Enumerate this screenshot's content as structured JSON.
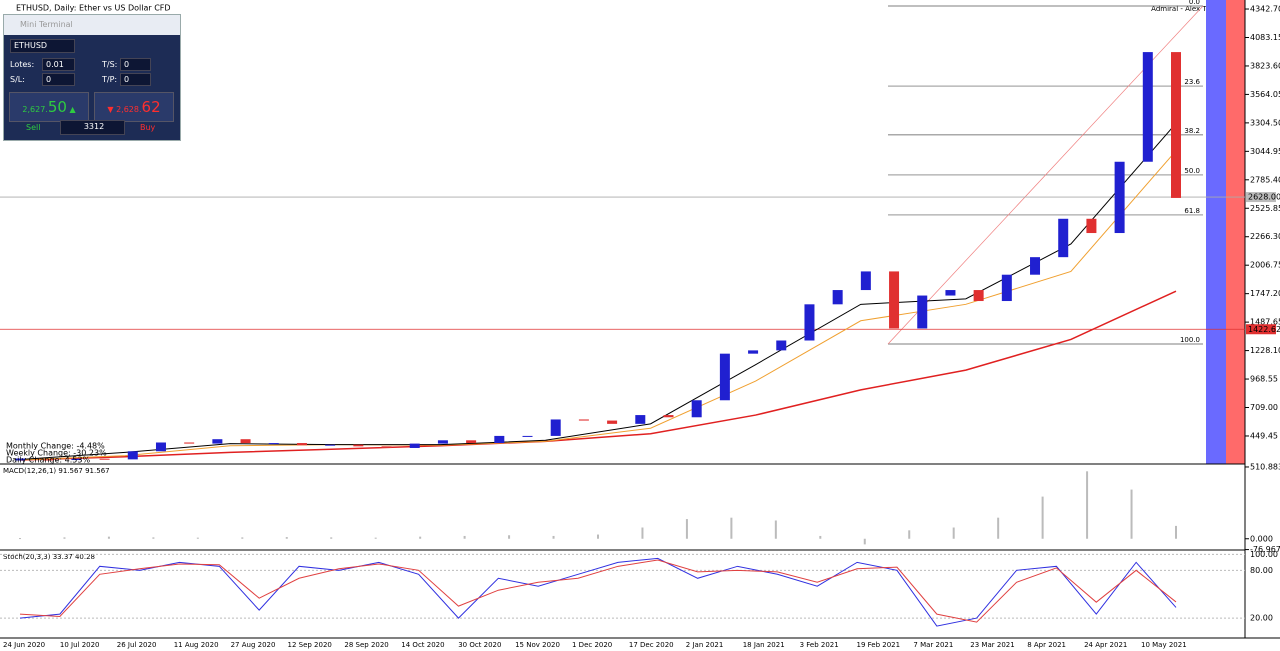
{
  "header": {
    "title": "ETHUSD, Daily:  Ether vs US Dollar CFD"
  },
  "terminal": {
    "title": "Mini Terminal",
    "symbol": "ETHUSD",
    "lots_label": "Lotes:",
    "lots": "0.01",
    "ts_label": "T/S:",
    "ts": "0",
    "sl_label": "S/L:",
    "sl": "0",
    "tp_label": "T/P:",
    "tp": "0",
    "sell_small": "2,627.",
    "sell_big": "50",
    "buy_small": "2,628.",
    "buy_big": "62",
    "sell": "Sell",
    "spread": "3312",
    "buy": "Buy"
  },
  "changes": [
    "Monthly Change: -4.48%",
    "Weekly Change: -30.23%",
    "Daily Change: 4.53%"
  ],
  "price_chart": {
    "broker": "Admiral - Alex Terminal",
    "closes": [
      235,
      230,
      242,
      236,
      310,
      390,
      380,
      420,
      385,
      385,
      365,
      370,
      355,
      340,
      380,
      410,
      385,
      450,
      450,
      600,
      590,
      560,
      640,
      620,
      775,
      1200,
      1230,
      1320,
      1650,
      1780,
      1950,
      1430,
      1730,
      1780,
      1680,
      1920,
      2080,
      2430,
      2300,
      2950,
      3950,
      2620
    ],
    "ma_black": [
      235,
      300,
      380,
      370,
      370,
      410,
      560,
      1100,
      1650,
      1700,
      2200,
      3300
    ],
    "ma_orange": [
      230,
      270,
      360,
      370,
      365,
      400,
      520,
      950,
      1500,
      1650,
      1950,
      3050
    ],
    "ma_red": [
      230,
      260,
      300,
      330,
      360,
      400,
      470,
      640,
      870,
      1050,
      1330,
      1770
    ],
    "ylim": [
      203,
      4425
    ],
    "yticks": [
      {
        "value": 4342.7,
        "label": "4342.70"
      },
      {
        "value": 4083.15,
        "label": "4083.15"
      },
      {
        "value": 3823.6,
        "label": "3823.60"
      },
      {
        "value": 3564.05,
        "label": "3564.05"
      },
      {
        "value": 3304.5,
        "label": "3304.50"
      },
      {
        "value": 3044.95,
        "label": "3044.95"
      },
      {
        "value": 2785.4,
        "label": "2785.40"
      },
      {
        "value": 2525.85,
        "label": "2525.85"
      },
      {
        "value": 2266.3,
        "label": "2266.30"
      },
      {
        "value": 2006.75,
        "label": "2006.75"
      },
      {
        "value": 1747.2,
        "label": "1747.20"
      },
      {
        "value": 1487.65,
        "label": "1487.65"
      },
      {
        "value": 1228.1,
        "label": "1228.10"
      },
      {
        "value": 968.55,
        "label": "968.55"
      },
      {
        "value": 709,
        "label": "709.00"
      },
      {
        "value": 449.45,
        "label": "449.45"
      }
    ],
    "fib_levels": [
      {
        "value": 4370,
        "label": "0.0"
      },
      {
        "value": 3640,
        "label": "23.6"
      },
      {
        "value": 3195,
        "label": "38.2"
      },
      {
        "value": 2830,
        "label": "50.0"
      },
      {
        "value": 2465,
        "label": "61.8"
      },
      {
        "value": 1288,
        "label": "100.0"
      }
    ],
    "current_price": {
      "value": 2628,
      "label": "2628.00"
    },
    "level_line": {
      "value": 1422.62,
      "label": "1422.62"
    }
  },
  "dates": [
    "24 Jun 2020",
    "10 Jul 2020",
    "26 Jul 2020",
    "11 Aug 2020",
    "27 Aug 2020",
    "12 Sep 2020",
    "28 Sep 2020",
    "14 Oct 2020",
    "30 Oct 2020",
    "15 Nov 2020",
    "1 Dec 2020",
    "17 Dec 2020",
    "2 Jan 2021",
    "18 Jan 2021",
    "3 Feb 2021",
    "19 Feb 2021",
    "7 Mar 2021",
    "23 Mar 2021",
    "8 Apr 2021",
    "24 Apr 2021",
    "10 May 2021"
  ],
  "macd": {
    "label": "MACD(12,26,1) 91.567 91.567",
    "values": [
      5,
      10,
      15,
      10,
      8,
      10,
      12,
      10,
      8,
      15,
      20,
      25,
      20,
      30,
      80,
      140,
      150,
      130,
      20,
      -40,
      60,
      80,
      150,
      300,
      480,
      350,
      91.567
    ],
    "ylim": [
      -80,
      532
    ],
    "yticks": [
      {
        "value": 510.883,
        "label": "510.883"
      },
      {
        "value": 0,
        "label": "0.000"
      },
      {
        "value": -76.967,
        "label": "-76.967"
      }
    ]
  },
  "stoch": {
    "label": "Stoch(20,3,3) 33.37 40.28",
    "k": [
      20,
      25,
      85,
      80,
      90,
      85,
      30,
      85,
      80,
      90,
      75,
      20,
      70,
      60,
      75,
      90,
      95,
      70,
      85,
      75,
      60,
      90,
      80,
      10,
      20,
      80,
      85,
      25,
      90,
      33.37
    ],
    "d": [
      25,
      22,
      75,
      82,
      88,
      87,
      45,
      70,
      82,
      88,
      80,
      35,
      55,
      65,
      70,
      85,
      93,
      78,
      80,
      78,
      65,
      82,
      84,
      25,
      15,
      65,
      83,
      40,
      80,
      40.28
    ],
    "ylim": [
      -5,
      103
    ],
    "yticks": [
      {
        "value": 100,
        "label": "100.00"
      },
      {
        "value": 80,
        "label": "80.00"
      },
      {
        "value": 20,
        "label": "20.00"
      }
    ]
  }
}
